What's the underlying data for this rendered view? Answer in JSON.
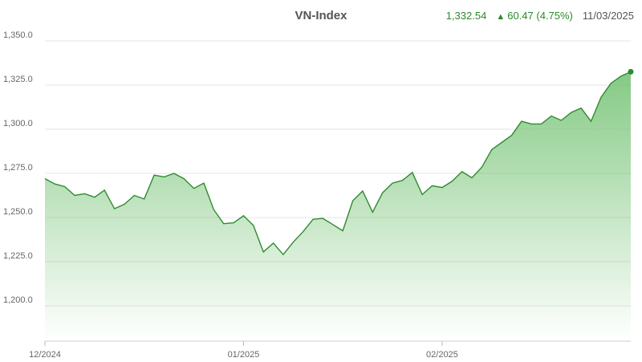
{
  "header": {
    "title": "VN-Index",
    "price": "1,332.54",
    "change": "60.47 (4.75%)",
    "date": "11/03/2025"
  },
  "colors": {
    "line": "#2e8b2e",
    "fill": "#5cb85c",
    "up": "#2a8a2a",
    "grid": "#e6e6e6"
  },
  "chart_data": {
    "type": "area",
    "title": "VN-Index",
    "ylim": [
      1180,
      1355
    ],
    "yticks": [
      1200,
      1225,
      1250,
      1275,
      1300,
      1325,
      1350
    ],
    "ytick_labels": [
      "1,200.0",
      "1,225.0",
      "1,250.0",
      "1,275.0",
      "1,300.0",
      "1,325.0",
      "1,350.0"
    ],
    "xticks": [
      {
        "index": 0,
        "label": "12/2024"
      },
      {
        "index": 20,
        "label": "01/2025"
      },
      {
        "index": 40,
        "label": "02/2025"
      }
    ],
    "grid": true,
    "last_marker": true,
    "series": [
      {
        "values": [
          1272,
          1269,
          1267.5,
          1262.5,
          1263.5,
          1261.5,
          1265.5,
          1255,
          1257.5,
          1262.5,
          1260.5,
          1274,
          1273,
          1275,
          1272,
          1266.5,
          1269.5,
          1254.5,
          1246.5,
          1247,
          1251,
          1245.5,
          1230.5,
          1235.5,
          1229,
          1236,
          1242,
          1249,
          1249.5,
          1246,
          1242.5,
          1259.5,
          1265,
          1253,
          1264,
          1269.5,
          1271,
          1275.5,
          1263,
          1268,
          1267,
          1270.5,
          1276,
          1272.5,
          1278.5,
          1288.5,
          1292.5,
          1296.5,
          1304.5,
          1303,
          1303,
          1307.5,
          1305,
          1309.5,
          1312,
          1304.5,
          1318,
          1326,
          1330,
          1332.54
        ]
      }
    ]
  }
}
